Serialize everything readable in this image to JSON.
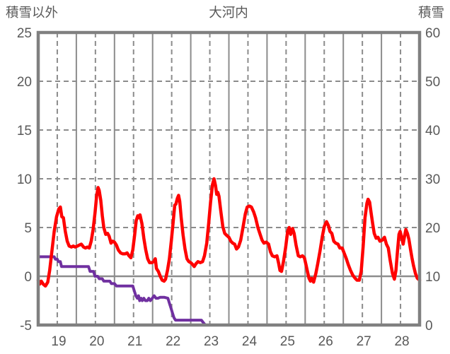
{
  "titles": {
    "left_axis": "積雪以外",
    "chart": "大河内",
    "right_axis": "積雪"
  },
  "colors": {
    "temperature_line": "#FF0000",
    "snow_line": "#7030A0",
    "grid": "#8C8C8C",
    "border": "#808080",
    "text": "#595959",
    "background": "#FFFFFF"
  },
  "chart_data": {
    "type": "line",
    "title": "大河内",
    "left_axis": {
      "title": "積雪以外",
      "ticks": [
        25,
        20,
        15,
        10,
        5,
        0,
        -5
      ],
      "range": [
        -5,
        25
      ]
    },
    "right_axis": {
      "title": "積雪",
      "ticks": [
        60,
        50,
        40,
        30,
        20,
        10,
        0
      ],
      "range": [
        0,
        60
      ]
    },
    "x_axis": {
      "labels": [
        "19",
        "20",
        "21",
        "22",
        "23",
        "24",
        "25",
        "26",
        "27",
        "28"
      ],
      "range_days": [
        19,
        29
      ],
      "solid_gridlines": "midnight",
      "dashed_gridlines": "noon"
    },
    "grid": {
      "horizontal_dashed_levels": [
        20,
        15,
        10,
        5
      ],
      "horizontal_solid_levels": [
        0
      ]
    },
    "series": [
      {
        "name": "積雪以外",
        "axis": "left",
        "unit": "deg",
        "color": "#FF0000",
        "points": [
          [
            19.0,
            -0.4
          ],
          [
            19.04,
            -0.8
          ],
          [
            19.08,
            -0.5
          ],
          [
            19.13,
            -0.8
          ],
          [
            19.19,
            -1.0
          ],
          [
            19.25,
            -0.6
          ],
          [
            19.3,
            0.6
          ],
          [
            19.36,
            2.6
          ],
          [
            19.42,
            4.6
          ],
          [
            19.48,
            6.1
          ],
          [
            19.54,
            6.9
          ],
          [
            19.58,
            7.1
          ],
          [
            19.62,
            6.1
          ],
          [
            19.66,
            6.0
          ],
          [
            19.71,
            4.6
          ],
          [
            19.76,
            3.6
          ],
          [
            19.81,
            3.1
          ],
          [
            19.87,
            3.0
          ],
          [
            19.92,
            3.1
          ],
          [
            19.97,
            3.0
          ],
          [
            20.03,
            3.1
          ],
          [
            20.08,
            3.2
          ],
          [
            20.13,
            3.3
          ],
          [
            20.19,
            3.0
          ],
          [
            20.24,
            2.9
          ],
          [
            20.29,
            3.0
          ],
          [
            20.34,
            2.9
          ],
          [
            20.39,
            3.6
          ],
          [
            20.44,
            4.8
          ],
          [
            20.49,
            6.5
          ],
          [
            20.53,
            8.2
          ],
          [
            20.57,
            9.1
          ],
          [
            20.6,
            8.8
          ],
          [
            20.64,
            7.8
          ],
          [
            20.68,
            6.2
          ],
          [
            20.72,
            5.0
          ],
          [
            20.77,
            4.3
          ],
          [
            20.82,
            4.4
          ],
          [
            20.86,
            4.1
          ],
          [
            20.91,
            3.4
          ],
          [
            20.95,
            3.6
          ],
          [
            21.0,
            3.5
          ],
          [
            21.05,
            3.2
          ],
          [
            21.1,
            2.7
          ],
          [
            21.16,
            2.4
          ],
          [
            21.22,
            2.3
          ],
          [
            21.28,
            2.3
          ],
          [
            21.33,
            2.4
          ],
          [
            21.38,
            2.1
          ],
          [
            21.43,
            1.9
          ],
          [
            21.48,
            2.7
          ],
          [
            21.53,
            4.3
          ],
          [
            21.57,
            5.7
          ],
          [
            21.61,
            6.2
          ],
          [
            21.64,
            6.0
          ],
          [
            21.67,
            6.3
          ],
          [
            21.72,
            5.4
          ],
          [
            21.77,
            3.9
          ],
          [
            21.82,
            2.7
          ],
          [
            21.87,
            1.8
          ],
          [
            21.92,
            1.4
          ],
          [
            21.98,
            1.4
          ],
          [
            22.03,
            1.5
          ],
          [
            22.07,
            1.8
          ],
          [
            22.1,
            0.8
          ],
          [
            22.15,
            0.5
          ],
          [
            22.2,
            0.0
          ],
          [
            22.25,
            -0.4
          ],
          [
            22.3,
            -0.5
          ],
          [
            22.34,
            -0.3
          ],
          [
            22.39,
            0.6
          ],
          [
            22.44,
            1.8
          ],
          [
            22.49,
            3.6
          ],
          [
            22.54,
            5.6
          ],
          [
            22.58,
            7.3
          ],
          [
            22.61,
            7.4
          ],
          [
            22.65,
            8.0
          ],
          [
            22.68,
            8.3
          ],
          [
            22.71,
            7.7
          ],
          [
            22.75,
            6.0
          ],
          [
            22.8,
            4.2
          ],
          [
            22.85,
            2.8
          ],
          [
            22.9,
            1.8
          ],
          [
            22.95,
            1.5
          ],
          [
            23.0,
            1.4
          ],
          [
            23.05,
            1.2
          ],
          [
            23.09,
            1.0
          ],
          [
            23.14,
            1.3
          ],
          [
            23.19,
            1.5
          ],
          [
            23.25,
            1.4
          ],
          [
            23.31,
            1.5
          ],
          [
            23.36,
            2.1
          ],
          [
            23.42,
            3.4
          ],
          [
            23.47,
            5.4
          ],
          [
            23.52,
            7.6
          ],
          [
            23.57,
            9.4
          ],
          [
            23.61,
            10.0
          ],
          [
            23.65,
            9.3
          ],
          [
            23.68,
            8.4
          ],
          [
            23.71,
            8.6
          ],
          [
            23.74,
            8.2
          ],
          [
            23.79,
            6.6
          ],
          [
            23.84,
            5.1
          ],
          [
            23.89,
            4.4
          ],
          [
            23.94,
            4.2
          ],
          [
            24.0,
            4.0
          ],
          [
            24.05,
            3.6
          ],
          [
            24.1,
            3.4
          ],
          [
            24.15,
            3.3
          ],
          [
            24.2,
            2.8
          ],
          [
            24.25,
            3.0
          ],
          [
            24.31,
            3.7
          ],
          [
            24.37,
            5.0
          ],
          [
            24.43,
            6.4
          ],
          [
            24.48,
            7.1
          ],
          [
            24.54,
            7.2
          ],
          [
            24.59,
            7.1
          ],
          [
            24.65,
            6.6
          ],
          [
            24.7,
            6.0
          ],
          [
            24.76,
            5.0
          ],
          [
            24.81,
            4.4
          ],
          [
            24.87,
            3.7
          ],
          [
            24.92,
            3.4
          ],
          [
            24.98,
            3.5
          ],
          [
            25.04,
            3.3
          ],
          [
            25.09,
            2.5
          ],
          [
            25.14,
            2.1
          ],
          [
            25.2,
            2.0
          ],
          [
            25.26,
            2.1
          ],
          [
            25.3,
            1.4
          ],
          [
            25.34,
            0.6
          ],
          [
            25.38,
            0.5
          ],
          [
            25.43,
            1.5
          ],
          [
            25.49,
            3.0
          ],
          [
            25.54,
            4.6
          ],
          [
            25.58,
            5.0
          ],
          [
            25.62,
            4.3
          ],
          [
            25.67,
            4.9
          ],
          [
            25.71,
            4.4
          ],
          [
            25.76,
            3.2
          ],
          [
            25.82,
            2.1
          ],
          [
            25.87,
            2.0
          ],
          [
            25.93,
            2.1
          ],
          [
            25.98,
            1.9
          ],
          [
            26.02,
            1.2
          ],
          [
            26.06,
            0.5
          ],
          [
            26.1,
            -0.2
          ],
          [
            26.14,
            -0.5
          ],
          [
            26.17,
            -0.2
          ],
          [
            26.22,
            -0.6
          ],
          [
            26.28,
            0.3
          ],
          [
            26.33,
            1.3
          ],
          [
            26.39,
            2.6
          ],
          [
            26.45,
            4.1
          ],
          [
            26.5,
            5.1
          ],
          [
            26.56,
            5.6
          ],
          [
            26.61,
            5.2
          ],
          [
            26.65,
            4.6
          ],
          [
            26.7,
            4.4
          ],
          [
            26.75,
            3.6
          ],
          [
            26.8,
            3.4
          ],
          [
            26.86,
            3.3
          ],
          [
            26.91,
            2.9
          ],
          [
            26.97,
            2.9
          ],
          [
            27.02,
            2.4
          ],
          [
            27.08,
            1.8
          ],
          [
            27.13,
            1.2
          ],
          [
            27.19,
            0.6
          ],
          [
            27.25,
            0.1
          ],
          [
            27.31,
            -0.2
          ],
          [
            27.36,
            -0.4
          ],
          [
            27.42,
            -0.4
          ],
          [
            27.47,
            0.5
          ],
          [
            27.52,
            3.0
          ],
          [
            27.57,
            6.0
          ],
          [
            27.62,
            7.5
          ],
          [
            27.65,
            7.9
          ],
          [
            27.69,
            7.6
          ],
          [
            27.73,
            6.5
          ],
          [
            27.77,
            5.4
          ],
          [
            27.81,
            4.4
          ],
          [
            27.86,
            3.9
          ],
          [
            27.91,
            4.0
          ],
          [
            27.96,
            3.6
          ],
          [
            28.02,
            3.7
          ],
          [
            28.08,
            4.0
          ],
          [
            28.13,
            3.3
          ],
          [
            28.18,
            2.9
          ],
          [
            28.23,
            1.6
          ],
          [
            28.29,
            0.3
          ],
          [
            28.34,
            -0.3
          ],
          [
            28.38,
            0.6
          ],
          [
            28.42,
            2.5
          ],
          [
            28.46,
            4.3
          ],
          [
            28.49,
            4.6
          ],
          [
            28.53,
            4.0
          ],
          [
            28.57,
            3.3
          ],
          [
            28.61,
            4.2
          ],
          [
            28.64,
            4.8
          ],
          [
            28.68,
            4.4
          ],
          [
            28.72,
            3.8
          ],
          [
            28.76,
            2.8
          ],
          [
            28.8,
            1.9
          ],
          [
            28.84,
            1.1
          ],
          [
            28.89,
            0.3
          ],
          [
            28.94,
            -0.2
          ],
          [
            29.0,
            -0.4
          ]
        ]
      },
      {
        "name": "積雪",
        "axis": "right",
        "unit": "cm",
        "color": "#7030A0",
        "points": [
          [
            19.0,
            14
          ],
          [
            19.42,
            14
          ],
          [
            19.45,
            13.5
          ],
          [
            19.5,
            13.5
          ],
          [
            19.53,
            13
          ],
          [
            19.58,
            13
          ],
          [
            19.61,
            12
          ],
          [
            20.32,
            12
          ],
          [
            20.36,
            11
          ],
          [
            20.45,
            11
          ],
          [
            20.49,
            10
          ],
          [
            20.56,
            10
          ],
          [
            20.6,
            9.5
          ],
          [
            20.68,
            9.5
          ],
          [
            20.72,
            9
          ],
          [
            20.88,
            9
          ],
          [
            20.92,
            8.5
          ],
          [
            21.0,
            8.5
          ],
          [
            21.05,
            8
          ],
          [
            21.48,
            8
          ],
          [
            21.52,
            7
          ],
          [
            21.56,
            6
          ],
          [
            21.6,
            5.5
          ],
          [
            21.63,
            6
          ],
          [
            21.66,
            5
          ],
          [
            21.7,
            5.5
          ],
          [
            21.73,
            5
          ],
          [
            21.77,
            5.5
          ],
          [
            21.81,
            5
          ],
          [
            21.86,
            5
          ],
          [
            21.9,
            5.5
          ],
          [
            21.94,
            5
          ],
          [
            21.99,
            5.5
          ],
          [
            22.04,
            6
          ],
          [
            22.09,
            5.5
          ],
          [
            22.14,
            5.5
          ],
          [
            22.2,
            5.7
          ],
          [
            22.3,
            5.7
          ],
          [
            22.4,
            5.5
          ],
          [
            22.44,
            4.5
          ],
          [
            22.48,
            3.5
          ],
          [
            22.52,
            2.5
          ],
          [
            22.56,
            1.5
          ],
          [
            22.6,
            1
          ],
          [
            23.28,
            1
          ],
          [
            23.33,
            0.5
          ],
          [
            23.38,
            0
          ],
          [
            29.0,
            0
          ]
        ]
      }
    ]
  }
}
